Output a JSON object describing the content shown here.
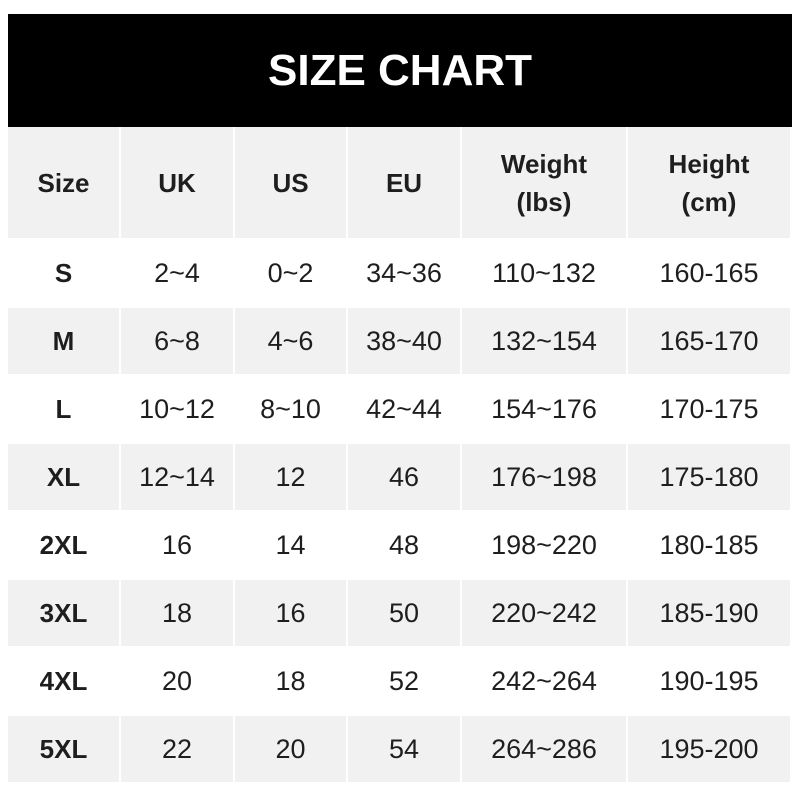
{
  "title": "SIZE CHART",
  "headers": [
    "Size",
    "UK",
    "US",
    "EU",
    "Weight\n(lbs)",
    "Height\n(cm)"
  ],
  "rows": [
    [
      "S",
      "2~4",
      "0~2",
      "34~36",
      "110~132",
      "160-165"
    ],
    [
      "M",
      "6~8",
      "4~6",
      "38~40",
      "132~154",
      "165-170"
    ],
    [
      "L",
      "10~12",
      "8~10",
      "42~44",
      "154~176",
      "170-175"
    ],
    [
      "XL",
      "12~14",
      "12",
      "46",
      "176~198",
      "175-180"
    ],
    [
      "2XL",
      "16",
      "14",
      "48",
      "198~220",
      "180-185"
    ],
    [
      "3XL",
      "18",
      "16",
      "50",
      "220~242",
      "185-190"
    ],
    [
      "4XL",
      "20",
      "18",
      "52",
      "242~264",
      "190-195"
    ],
    [
      "5XL",
      "22",
      "20",
      "54",
      "264~286",
      "195-200"
    ]
  ],
  "colors": {
    "title_bg": "#000000",
    "header_bg": "#f1f1f1",
    "stripe_bg": "#f1f1f1"
  }
}
